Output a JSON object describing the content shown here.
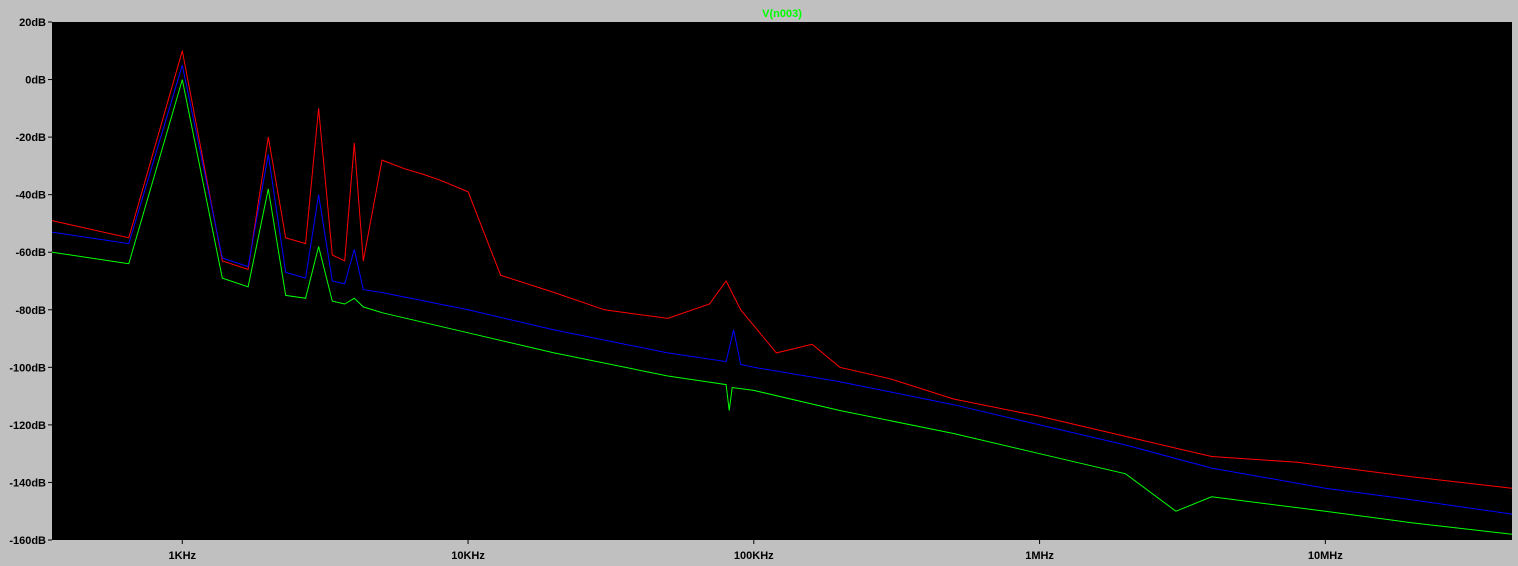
{
  "window": {
    "title": "V(n003)"
  },
  "chart_data": {
    "type": "line",
    "title": "V(n003)",
    "title_color": "#00ff00",
    "background": "#000000",
    "frame_color": "#c0c0c0",
    "grid": false,
    "xscale": "log",
    "xlim": [
      350,
      45000000
    ],
    "ylim": [
      -160,
      20
    ],
    "x_ticks": [
      {
        "value": 1000,
        "label": "1KHz"
      },
      {
        "value": 10000,
        "label": "10KHz"
      },
      {
        "value": 100000,
        "label": "100KHz"
      },
      {
        "value": 1000000,
        "label": "1MHz"
      },
      {
        "value": 10000000,
        "label": "10MHz"
      }
    ],
    "y_ticks": [
      {
        "value": 20,
        "label": "20dB"
      },
      {
        "value": 0,
        "label": "0dB"
      },
      {
        "value": -20,
        "label": "-20dB"
      },
      {
        "value": -40,
        "label": "-40dB"
      },
      {
        "value": -60,
        "label": "-60dB"
      },
      {
        "value": -80,
        "label": "-80dB"
      },
      {
        "value": -100,
        "label": "-100dB"
      },
      {
        "value": -120,
        "label": "-120dB"
      },
      {
        "value": -140,
        "label": "-140dB"
      },
      {
        "value": -160,
        "label": "-160dB"
      }
    ],
    "series": [
      {
        "color": "#ff0000",
        "x": [
          350,
          650,
          1000,
          1380,
          1700,
          2000,
          2300,
          2700,
          3000,
          3350,
          3700,
          4000,
          4300,
          5000,
          6000,
          7000,
          8000,
          10000,
          13000,
          20000,
          30000,
          50000,
          70000,
          80000,
          90000,
          120000,
          160000,
          200000,
          300000,
          500000,
          1000000,
          2000000,
          4000000,
          8000000,
          20000000,
          45000000
        ],
        "y": [
          -49,
          -55,
          10,
          -63,
          -66,
          -20,
          -55,
          -57,
          -10,
          -61,
          -63,
          -22,
          -63,
          -28,
          -31,
          -33,
          -35,
          -39,
          -68,
          -74,
          -80,
          -83,
          -78,
          -70,
          -80,
          -95,
          -92,
          -100,
          -104,
          -111,
          -117,
          -124,
          -131,
          -133,
          -138,
          -142
        ]
      },
      {
        "color": "#0000ff",
        "x": [
          350,
          650,
          1000,
          1380,
          1700,
          2000,
          2300,
          2700,
          3000,
          3350,
          3700,
          4000,
          4300,
          5000,
          10000,
          20000,
          50000,
          80000,
          85000,
          90000,
          100000,
          200000,
          500000,
          1000000,
          2000000,
          4000000,
          10000000,
          20000000,
          45000000
        ],
        "y": [
          -53,
          -57,
          5,
          -62,
          -65,
          -26,
          -67,
          -69,
          -40,
          -70,
          -71,
          -59,
          -73,
          -74,
          -80,
          -87,
          -95,
          -98,
          -87,
          -99,
          -100,
          -105,
          -113,
          -120,
          -127,
          -135,
          -142,
          -146,
          -151
        ]
      },
      {
        "color": "#00ff00",
        "x": [
          350,
          650,
          1000,
          1380,
          1700,
          2000,
          2300,
          2700,
          3000,
          3350,
          3700,
          4000,
          4300,
          5000,
          10000,
          20000,
          50000,
          80000,
          82000,
          84000,
          100000,
          200000,
          500000,
          1000000,
          2000000,
          3000000,
          4000000,
          10000000,
          20000000,
          45000000
        ],
        "y": [
          -60,
          -64,
          0,
          -69,
          -72,
          -38,
          -75,
          -76,
          -58,
          -77,
          -78,
          -76,
          -79,
          -81,
          -88,
          -95,
          -103,
          -106,
          -115,
          -107,
          -108,
          -115,
          -123,
          -130,
          -137,
          -150,
          -145,
          -150,
          -154,
          -158
        ]
      }
    ]
  }
}
